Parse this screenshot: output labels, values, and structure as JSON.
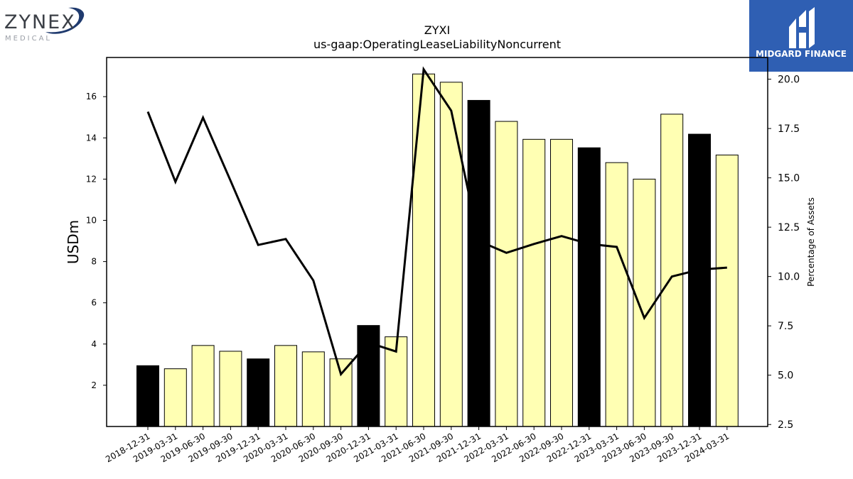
{
  "logos": {
    "left": {
      "wordmark": "ZYNEX",
      "subtext": "MEDICAL"
    },
    "right": {
      "label": "MIDGARD FINANCE"
    }
  },
  "chart_data": {
    "type": "bar",
    "title": "ZYXI",
    "subtitle": "us-gaap:OperatingLeaseLiabilityNoncurrent",
    "ylabel": "USDm",
    "y2label": "Percentage of Assets",
    "categories": [
      "2018-12-31",
      "2019-03-31",
      "2019-06-30",
      "2019-09-30",
      "2019-12-31",
      "2020-03-31",
      "2020-06-30",
      "2020-09-30",
      "2020-12-31",
      "2021-03-31",
      "2021-06-30",
      "2021-09-30",
      "2021-12-31",
      "2022-03-31",
      "2022-06-30",
      "2022-09-30",
      "2022-12-31",
      "2023-03-31",
      "2023-06-30",
      "2023-09-30",
      "2023-12-31",
      "2024-03-31"
    ],
    "series": [
      {
        "type": "bar",
        "axis": "left",
        "values": [
          2.95,
          2.8,
          3.93,
          3.65,
          3.28,
          3.93,
          3.62,
          3.28,
          4.9,
          4.35,
          17.1,
          16.7,
          15.82,
          14.8,
          13.93,
          13.93,
          13.52,
          12.8,
          12.0,
          15.15,
          14.18,
          13.17
        ],
        "colors": [
          "#000000",
          "#ffffb3",
          "#ffffb3",
          "#ffffb3",
          "#000000",
          "#ffffb3",
          "#ffffb3",
          "#ffffb3",
          "#000000",
          "#ffffb3",
          "#ffffb3",
          "#ffffb3",
          "#000000",
          "#ffffb3",
          "#ffffb3",
          "#ffffb3",
          "#000000",
          "#ffffb3",
          "#ffffb3",
          "#ffffb3",
          "#000000",
          "#ffffb3"
        ]
      },
      {
        "type": "line",
        "axis": "right",
        "color": "#000000",
        "values": [
          18.35,
          14.8,
          18.05,
          14.85,
          11.6,
          11.9,
          9.8,
          5.05,
          6.65,
          6.2,
          20.5,
          18.4,
          11.8,
          11.2,
          11.65,
          12.05,
          11.65,
          11.5,
          7.9,
          10.0,
          10.35,
          10.45
        ]
      }
    ],
    "ylim": [
      0,
      17.9
    ],
    "y2lim": [
      2.4,
      21.1
    ],
    "yticks": [
      2,
      4,
      6,
      8,
      10,
      12,
      14,
      16
    ],
    "y2ticks": [
      2.5,
      5.0,
      7.5,
      10.0,
      12.5,
      15.0,
      17.5,
      20.0
    ],
    "legend": "none",
    "grid": false
  }
}
